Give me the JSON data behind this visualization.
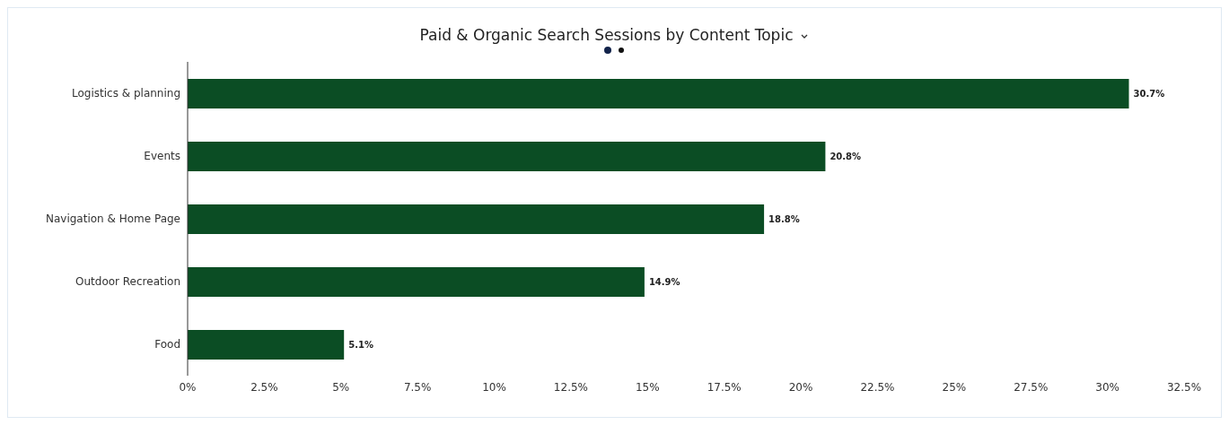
{
  "chart_data": {
    "type": "bar",
    "title": "Paid & Organic Search Sessions by Content Topic",
    "orientation": "horizontal",
    "categories": [
      "Logistics & planning",
      "Events",
      "Navigation & Home Page",
      "Outdoor Recreation",
      "Food"
    ],
    "values": [
      30.7,
      20.8,
      18.8,
      14.9,
      5.1
    ],
    "value_labels": [
      "30.7%",
      "20.8%",
      "18.8%",
      "14.9%",
      "5.1%"
    ],
    "color": "#0b4d24",
    "xlim": [
      0,
      32.5
    ],
    "xticks": [
      {
        "value": 0,
        "label": "0%"
      },
      {
        "value": 2.5,
        "label": "2.5%"
      },
      {
        "value": 5,
        "label": "5%"
      },
      {
        "value": 7.5,
        "label": "7.5%"
      },
      {
        "value": 10,
        "label": "10%"
      },
      {
        "value": 12.5,
        "label": "12.5%"
      },
      {
        "value": 15,
        "label": "15%"
      },
      {
        "value": 17.5,
        "label": "17.5%"
      },
      {
        "value": 20,
        "label": "20%"
      },
      {
        "value": 22.5,
        "label": "22.5%"
      },
      {
        "value": 25,
        "label": "25%"
      },
      {
        "value": 27.5,
        "label": "27.5%"
      },
      {
        "value": 30,
        "label": "30%"
      },
      {
        "value": 32.5,
        "label": "32.5%"
      }
    ],
    "grid": false,
    "legend": false
  }
}
